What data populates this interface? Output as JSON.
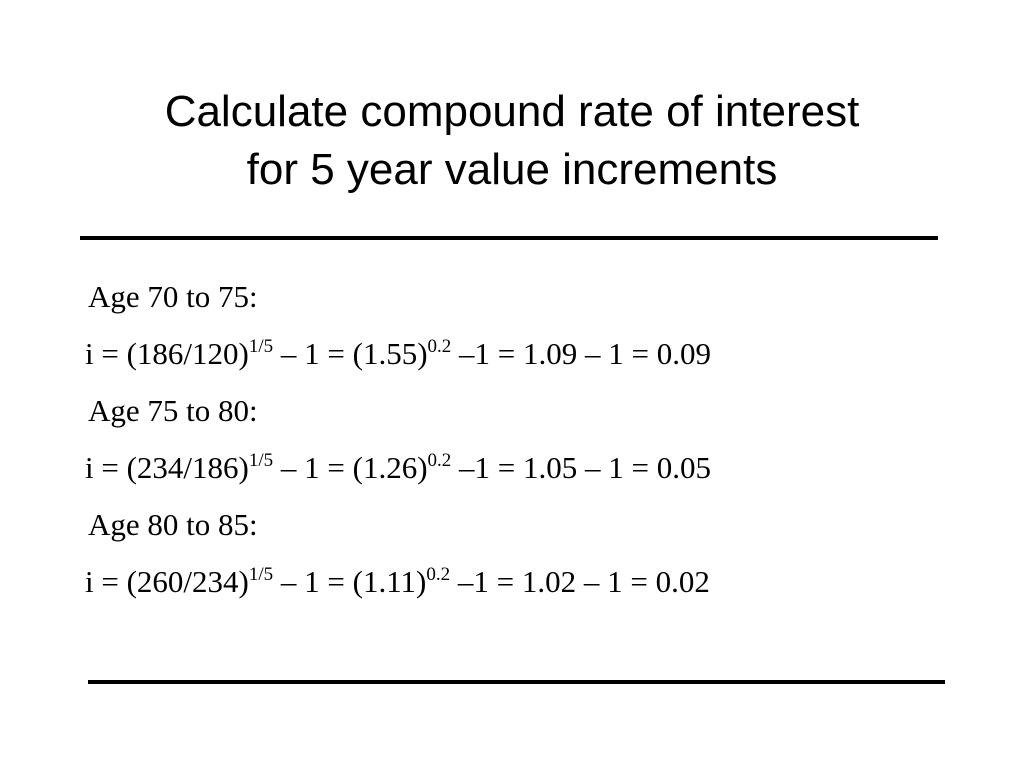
{
  "title": [
    "Calculate compound rate of interest",
    "for 5 year value increments"
  ],
  "sections": [
    {
      "label": "Age 70 to 75:",
      "formula": [
        "i = (186/120)",
        "1/5",
        " – 1 = (1.55)",
        "0.2",
        " –1 = 1.09 – 1 = 0.09"
      ]
    },
    {
      "label": "Age 75 to 80:",
      "formula": [
        "i = (234/186)",
        "1/5",
        " – 1 = (1.26)",
        "0.2",
        " –1 = 1.05 – 1 = 0.05"
      ]
    },
    {
      "label": "Age 80 to 85:",
      "formula": [
        "i = (260/234)",
        "1/5",
        " – 1 = (1.11)",
        "0.2",
        " –1 = 1.02 – 1 = 0.02"
      ]
    }
  ]
}
